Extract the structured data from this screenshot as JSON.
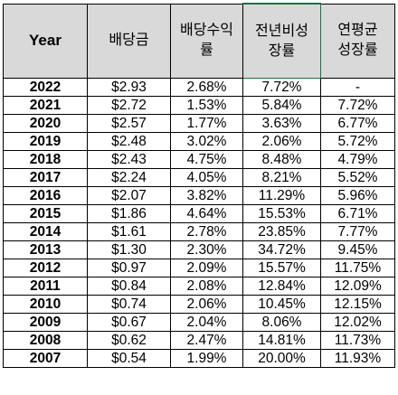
{
  "table": {
    "headers": [
      {
        "key": "year",
        "lines": [
          "Year"
        ]
      },
      {
        "key": "dividend",
        "lines": [
          "배당금"
        ]
      },
      {
        "key": "yield",
        "lines": [
          "배당수익",
          "률"
        ]
      },
      {
        "key": "yoy_growth",
        "lines": [
          "전년비성",
          "장률"
        ]
      },
      {
        "key": "annual_avg_growth",
        "lines": [
          "연평균",
          "성장률"
        ]
      }
    ],
    "rows": [
      {
        "year": "2022",
        "dividend": "$2.93",
        "yield": "2.68%",
        "yoy_growth": "7.72%",
        "annual_avg_growth": "-"
      },
      {
        "year": "2021",
        "dividend": "$2.72",
        "yield": "1.53%",
        "yoy_growth": "5.84%",
        "annual_avg_growth": "7.72%"
      },
      {
        "year": "2020",
        "dividend": "$2.57",
        "yield": "1.77%",
        "yoy_growth": "3.63%",
        "annual_avg_growth": "6.77%"
      },
      {
        "year": "2019",
        "dividend": "$2.48",
        "yield": "3.02%",
        "yoy_growth": "2.06%",
        "annual_avg_growth": "5.72%"
      },
      {
        "year": "2018",
        "dividend": "$2.43",
        "yield": "4.75%",
        "yoy_growth": "8.48%",
        "annual_avg_growth": "4.79%"
      },
      {
        "year": "2017",
        "dividend": "$2.24",
        "yield": "4.05%",
        "yoy_growth": "8.21%",
        "annual_avg_growth": "5.52%"
      },
      {
        "year": "2016",
        "dividend": "$2.07",
        "yield": "3.82%",
        "yoy_growth": "11.29%",
        "annual_avg_growth": "5.96%"
      },
      {
        "year": "2015",
        "dividend": "$1.86",
        "yield": "4.64%",
        "yoy_growth": "15.53%",
        "annual_avg_growth": "6.71%"
      },
      {
        "year": "2014",
        "dividend": "$1.61",
        "yield": "2.78%",
        "yoy_growth": "23.85%",
        "annual_avg_growth": "7.77%"
      },
      {
        "year": "2013",
        "dividend": "$1.30",
        "yield": "2.30%",
        "yoy_growth": "34.72%",
        "annual_avg_growth": "9.45%"
      },
      {
        "year": "2012",
        "dividend": "$0.97",
        "yield": "2.09%",
        "yoy_growth": "15.57%",
        "annual_avg_growth": "11.75%"
      },
      {
        "year": "2011",
        "dividend": "$0.84",
        "yield": "2.08%",
        "yoy_growth": "12.84%",
        "annual_avg_growth": "12.09%"
      },
      {
        "year": "2010",
        "dividend": "$0.74",
        "yield": "2.06%",
        "yoy_growth": "10.45%",
        "annual_avg_growth": "12.15%"
      },
      {
        "year": "2009",
        "dividend": "$0.67",
        "yield": "2.04%",
        "yoy_growth": "8.06%",
        "annual_avg_growth": "12.02%"
      },
      {
        "year": "2008",
        "dividend": "$0.62",
        "yield": "2.47%",
        "yoy_growth": "14.81%",
        "annual_avg_growth": "11.73%"
      },
      {
        "year": "2007",
        "dividend": "$0.54",
        "yield": "1.99%",
        "yoy_growth": "20.00%",
        "annual_avg_growth": "11.93%"
      }
    ]
  },
  "colors": {
    "header_fill": "#d9d9d9",
    "grid": "#000000",
    "selected_cell_border": "#1e7145"
  }
}
